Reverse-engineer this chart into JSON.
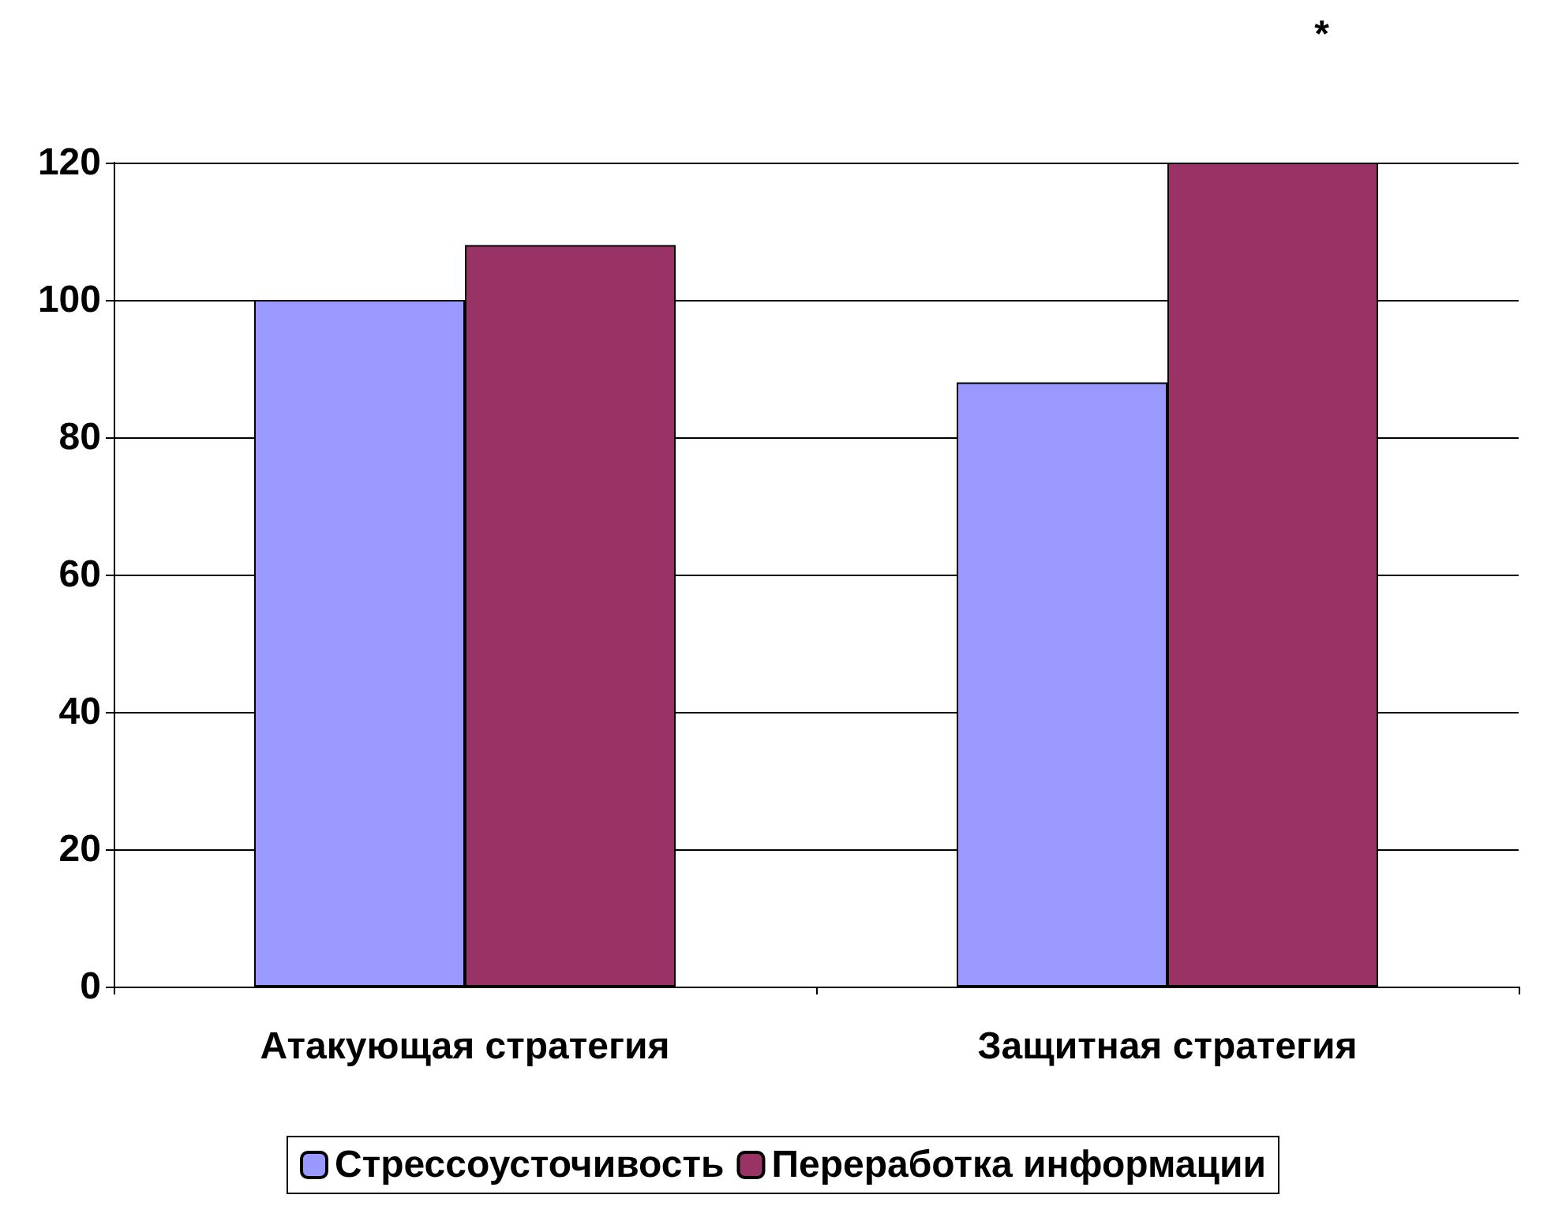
{
  "chart_data": {
    "type": "bar",
    "categories": [
      "Атакующая стратегия",
      "Защитная стратегия"
    ],
    "series": [
      {
        "name": "Стрессоусточивость",
        "color": "#9999ff",
        "values": [
          100,
          88
        ]
      },
      {
        "name": "Переработка информации",
        "color": "#993366",
        "values": [
          108,
          120
        ]
      }
    ],
    "ylim": [
      0,
      120
    ],
    "yticks": [
      0,
      20,
      40,
      60,
      80,
      100,
      120
    ],
    "grid": "y",
    "legend": "bottom",
    "annotations": [
      "*"
    ]
  }
}
